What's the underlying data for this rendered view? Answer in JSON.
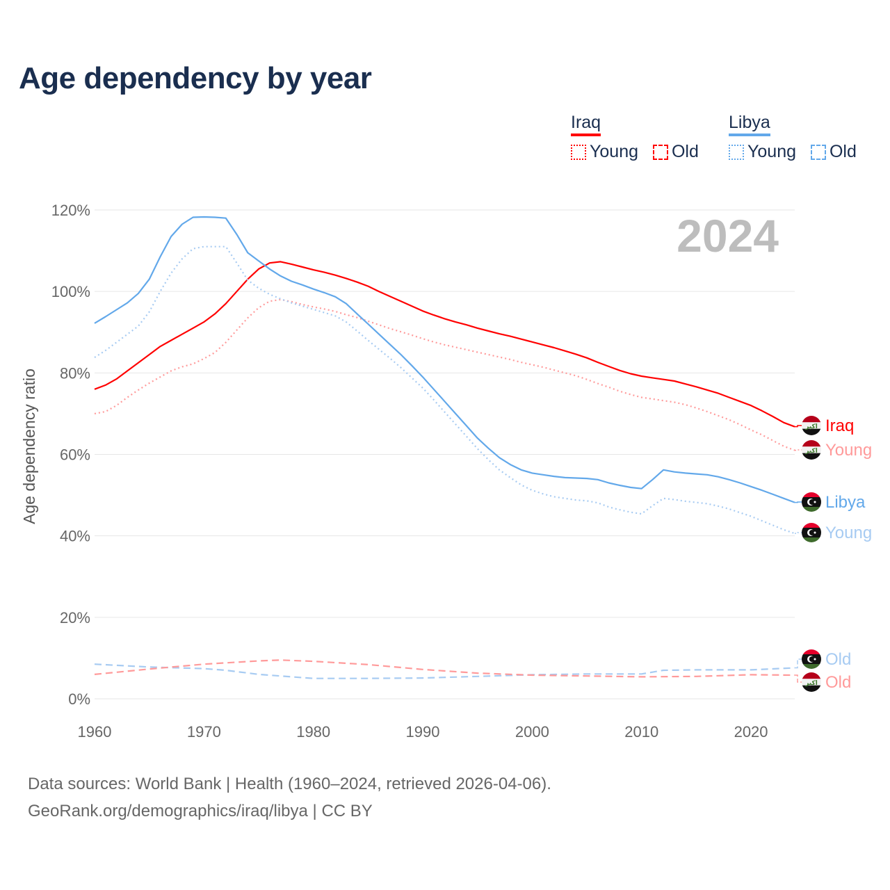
{
  "title": "Age dependency by year",
  "legend": {
    "groups": [
      {
        "country": "Iraq",
        "color": "#ff0000",
        "items": [
          {
            "label": "Young",
            "style": "dotted"
          },
          {
            "label": "Old",
            "style": "dashed"
          }
        ]
      },
      {
        "country": "Libya",
        "color": "#62a8ea",
        "items": [
          {
            "label": "Young",
            "style": "dotted"
          },
          {
            "label": "Old",
            "style": "dashed"
          }
        ]
      }
    ]
  },
  "footer": {
    "line1": "Data sources: World Bank | Health (1960–2024, retrieved 2026-04-06).",
    "line2": "GeoRank.org/demographics/iraq/libya | CC BY"
  },
  "chart_data": {
    "type": "line",
    "title": "Age dependency by year",
    "watermark_year": "2024",
    "xlabel": "",
    "ylabel": "Age dependency ratio",
    "xlim": [
      1960,
      2024
    ],
    "ylim": [
      0,
      120
    ],
    "x_ticks": [
      1960,
      1970,
      1980,
      1990,
      2000,
      2010,
      2020
    ],
    "y_ticks": [
      0,
      20,
      40,
      60,
      80,
      100,
      120
    ],
    "y_tick_labels": [
      "0%",
      "20%",
      "40%",
      "60%",
      "80%",
      "100%",
      "120%"
    ],
    "grid": true,
    "series": [
      {
        "name": "Iraq",
        "end_label": "Iraq",
        "country": "iraq",
        "color": "#ff0000",
        "style": "solid",
        "x": [
          1960,
          1961,
          1962,
          1963,
          1964,
          1965,
          1966,
          1967,
          1968,
          1969,
          1970,
          1971,
          1972,
          1973,
          1974,
          1975,
          1976,
          1977,
          1978,
          1979,
          1980,
          1981,
          1982,
          1983,
          1984,
          1985,
          1986,
          1987,
          1988,
          1989,
          1990,
          1991,
          1992,
          1993,
          1994,
          1995,
          1996,
          1997,
          1998,
          1999,
          2000,
          2001,
          2002,
          2003,
          2004,
          2005,
          2006,
          2007,
          2008,
          2009,
          2010,
          2011,
          2012,
          2013,
          2014,
          2015,
          2016,
          2017,
          2018,
          2019,
          2020,
          2021,
          2022,
          2023,
          2024
        ],
        "values": [
          76,
          77,
          78.5,
          80.5,
          82.5,
          84.5,
          86.5,
          88,
          89.5,
          91,
          92.5,
          94.5,
          97,
          100,
          103,
          105.5,
          107,
          107.3,
          106.7,
          106,
          105.3,
          104.7,
          104,
          103.2,
          102.3,
          101.3,
          100,
          98.8,
          97.6,
          96.4,
          95.2,
          94.2,
          93.3,
          92.5,
          91.8,
          91,
          90.3,
          89.6,
          89,
          88.3,
          87.6,
          86.9,
          86.2,
          85.4,
          84.6,
          83.7,
          82.6,
          81.6,
          80.6,
          79.8,
          79.2,
          78.8,
          78.4,
          78,
          77.3,
          76.6,
          75.8,
          75,
          74,
          73,
          72,
          70.7,
          69.3,
          67.8,
          66.8
        ]
      },
      {
        "name": "Iraq Young",
        "end_label": "Young",
        "country": "iraq",
        "color": "#ff9a9a",
        "style": "dotted",
        "x": [
          1960,
          1961,
          1962,
          1963,
          1964,
          1965,
          1966,
          1967,
          1968,
          1969,
          1970,
          1971,
          1972,
          1973,
          1974,
          1975,
          1976,
          1977,
          1978,
          1979,
          1980,
          1981,
          1982,
          1983,
          1984,
          1985,
          1986,
          1987,
          1988,
          1989,
          1990,
          1991,
          1992,
          1993,
          1994,
          1995,
          1996,
          1997,
          1998,
          1999,
          2000,
          2001,
          2002,
          2003,
          2004,
          2005,
          2006,
          2007,
          2008,
          2009,
          2010,
          2011,
          2012,
          2013,
          2014,
          2015,
          2016,
          2017,
          2018,
          2019,
          2020,
          2021,
          2022,
          2023,
          2024
        ],
        "values": [
          70,
          70.5,
          72,
          74,
          75.8,
          77.5,
          79,
          80.5,
          81.5,
          82.2,
          83.5,
          85,
          87.5,
          90.5,
          93.5,
          96,
          97.6,
          98,
          97.5,
          96.8,
          96.2,
          95.7,
          95.1,
          94.3,
          93.6,
          92.7,
          91.8,
          90.9,
          90.1,
          89.3,
          88.4,
          87.6,
          86.9,
          86.3,
          85.7,
          85.1,
          84.5,
          83.9,
          83.3,
          82.6,
          82,
          81.4,
          80.7,
          80,
          79.3,
          78.4,
          77.4,
          76.5,
          75.5,
          74.7,
          74,
          73.6,
          73.2,
          72.8,
          72.2,
          71.4,
          70.5,
          69.5,
          68.5,
          67.3,
          66,
          64.8,
          63.4,
          62,
          61
        ]
      },
      {
        "name": "Libya",
        "end_label": "Libya",
        "country": "libya",
        "color": "#62a8ea",
        "style": "solid",
        "x": [
          1960,
          1961,
          1962,
          1963,
          1964,
          1965,
          1966,
          1967,
          1968,
          1969,
          1970,
          1971,
          1972,
          1973,
          1974,
          1975,
          1976,
          1977,
          1978,
          1979,
          1980,
          1981,
          1982,
          1983,
          1984,
          1985,
          1986,
          1987,
          1988,
          1989,
          1990,
          1991,
          1992,
          1993,
          1994,
          1995,
          1996,
          1997,
          1998,
          1999,
          2000,
          2001,
          2002,
          2003,
          2004,
          2005,
          2006,
          2007,
          2008,
          2009,
          2010,
          2011,
          2012,
          2013,
          2014,
          2015,
          2016,
          2017,
          2018,
          2019,
          2020,
          2021,
          2022,
          2023,
          2024
        ],
        "values": [
          92.2,
          93.8,
          95.5,
          97.2,
          99.5,
          103,
          108.5,
          113.5,
          116.5,
          118.2,
          118.3,
          118.2,
          118,
          114,
          109.5,
          107.5,
          105.5,
          103.8,
          102.5,
          101.6,
          100.6,
          99.7,
          98.7,
          97,
          94.5,
          92,
          89.5,
          87,
          84.5,
          81.8,
          79,
          76,
          73,
          70,
          67,
          64,
          61.5,
          59.2,
          57.5,
          56.2,
          55.4,
          55,
          54.6,
          54.3,
          54.2,
          54.1,
          53.8,
          53,
          52.4,
          51.9,
          51.6,
          53.8,
          56.2,
          55.7,
          55.4,
          55.2,
          55,
          54.5,
          53.8,
          53,
          52.1,
          51.2,
          50.2,
          49.2,
          48.2
        ]
      },
      {
        "name": "Libya Young",
        "end_label": "Young",
        "country": "libya",
        "color": "#a7cbf2",
        "style": "dotted",
        "x": [
          1960,
          1961,
          1962,
          1963,
          1964,
          1965,
          1966,
          1967,
          1968,
          1969,
          1970,
          1971,
          1972,
          1973,
          1974,
          1975,
          1976,
          1977,
          1978,
          1979,
          1980,
          1981,
          1982,
          1983,
          1984,
          1985,
          1986,
          1987,
          1988,
          1989,
          1990,
          1991,
          1992,
          1993,
          1994,
          1995,
          1996,
          1997,
          1998,
          1999,
          2000,
          2001,
          2002,
          2003,
          2004,
          2005,
          2006,
          2007,
          2008,
          2009,
          2010,
          2011,
          2012,
          2013,
          2014,
          2015,
          2016,
          2017,
          2018,
          2019,
          2020,
          2021,
          2022,
          2023,
          2024
        ],
        "values": [
          83.8,
          85.5,
          87.5,
          89.5,
          91.5,
          95,
          100,
          104.5,
          108,
          110.5,
          111,
          111,
          111,
          107,
          102.8,
          100.8,
          99.3,
          98.2,
          97.2,
          96.4,
          95.6,
          94.8,
          94,
          92.5,
          90.3,
          88,
          85.8,
          83.6,
          81.3,
          78.8,
          76.3,
          73.4,
          70.4,
          67.4,
          64.4,
          61.4,
          58.7,
          56.2,
          54.3,
          52.5,
          51.2,
          50.3,
          49.6,
          49.2,
          48.8,
          48.6,
          48.1,
          47.1,
          46.4,
          45.8,
          45.4,
          47.4,
          49.2,
          48.9,
          48.5,
          48.2,
          47.9,
          47.3,
          46.6,
          45.7,
          44.8,
          43.7,
          42.6,
          41.5,
          40.6
        ]
      },
      {
        "name": "Libya Old",
        "end_label": "Old",
        "country": "libya",
        "color": "#a7cbf2",
        "style": "dashed",
        "x": [
          1960,
          1965,
          1970,
          1972,
          1975,
          1980,
          1985,
          1990,
          1995,
          2000,
          2005,
          2010,
          2012,
          2015,
          2020,
          2024
        ],
        "values": [
          8.5,
          7.8,
          7.4,
          7,
          6,
          5,
          5,
          5.1,
          5.5,
          5.9,
          6.1,
          6.1,
          7,
          7.1,
          7.1,
          7.6
        ]
      },
      {
        "name": "Iraq Old",
        "end_label": "Old",
        "country": "iraq",
        "color": "#ff9a9a",
        "style": "dashed",
        "x": [
          1960,
          1965,
          1970,
          1975,
          1977,
          1980,
          1985,
          1990,
          1995,
          2000,
          2005,
          2010,
          2015,
          2020,
          2024
        ],
        "values": [
          6,
          7.3,
          8.5,
          9.3,
          9.5,
          9.2,
          8.4,
          7.2,
          6.3,
          5.8,
          5.6,
          5.4,
          5.5,
          5.9,
          5.8
        ]
      }
    ]
  }
}
